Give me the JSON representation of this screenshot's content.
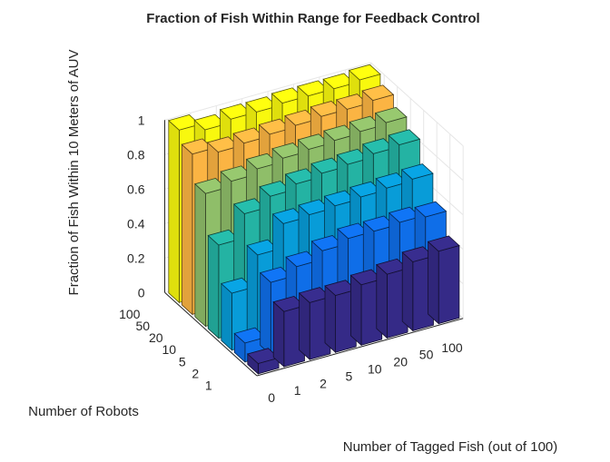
{
  "chart_data": {
    "type": "bar3d",
    "title": "Fraction of Fish Within Range for Feedback Control",
    "xlabel": "Number of Tagged Fish (out of 100)",
    "ylabel": "Number of Robots",
    "zlabel": "Fraction of Fish Within 10 Meters of AUV",
    "x_categories": [
      "0",
      "1",
      "2",
      "5",
      "10",
      "20",
      "50",
      "100"
    ],
    "y_categories": [
      "1",
      "2",
      "5",
      "10",
      "20",
      "50",
      "100"
    ],
    "z_ticks": [
      "0",
      "0.2",
      "0.4",
      "0.6",
      "0.8",
      "1"
    ],
    "zlim": [
      0,
      1
    ],
    "grid": true,
    "colormap": "parula",
    "row_colors": [
      "#352a87",
      "#0f6ee8",
      "#089cd8",
      "#24b3a3",
      "#8fbe69",
      "#fbb443",
      "#f8f80e"
    ],
    "values": [
      [
        0.06,
        0.32,
        0.33,
        0.33,
        0.35,
        0.37,
        0.4,
        0.42
      ],
      [
        0.11,
        0.42,
        0.47,
        0.52,
        0.55,
        0.55,
        0.56,
        0.55
      ],
      [
        0.33,
        0.51,
        0.65,
        0.66,
        0.67,
        0.68,
        0.69,
        0.7
      ],
      [
        0.54,
        0.68,
        0.74,
        0.77,
        0.79,
        0.8,
        0.82,
        0.83
      ],
      [
        0.77,
        0.8,
        0.83,
        0.85,
        0.86,
        0.87,
        0.88,
        0.89
      ],
      [
        0.93,
        0.9,
        0.91,
        0.92,
        0.93,
        0.94,
        0.94,
        0.95
      ],
      [
        1.0,
        0.96,
        0.98,
        0.98,
        0.99,
        0.99,
        0.99,
        1.0
      ]
    ]
  }
}
